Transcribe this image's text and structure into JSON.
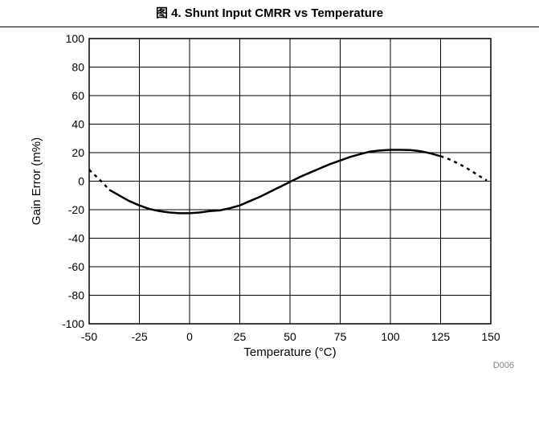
{
  "figure": {
    "title": "图 4. Shunt Input CMRR vs Temperature",
    "id_label": "D006"
  },
  "chart_data": {
    "type": "line",
    "title": "图 4. Shunt Input CMRR vs Temperature",
    "xlabel": "Temperature (°C)",
    "ylabel": "Gain Error (m%)",
    "xlim": [
      -50,
      150
    ],
    "ylim": [
      -100,
      100
    ],
    "x_ticks": [
      "-50",
      "-25",
      "0",
      "25",
      "50",
      "75",
      "100",
      "125",
      "150"
    ],
    "y_ticks": [
      "100",
      "80",
      "60",
      "40",
      "20",
      "0",
      "-20",
      "-40",
      "-60",
      "-80",
      "-100"
    ],
    "grid": true,
    "series": [
      {
        "style": "solid",
        "color": "#000000",
        "x": [
          -40,
          -35,
          -30,
          -25,
          -20,
          -15,
          -10,
          -5,
          0,
          5,
          10,
          15,
          20,
          25,
          30,
          35,
          40,
          45,
          50,
          55,
          60,
          65,
          70,
          75,
          80,
          85,
          90,
          95,
          100,
          105,
          110,
          115,
          120,
          125
        ],
        "y": [
          -6,
          -10,
          -14,
          -17,
          -19.5,
          -21,
          -22,
          -22.5,
          -22.5,
          -22,
          -21,
          -20.5,
          -19,
          -17,
          -14,
          -11,
          -7.5,
          -4,
          -0.5,
          3,
          6,
          9,
          12,
          14.5,
          17,
          19,
          20.8,
          21.6,
          22,
          22,
          21.8,
          21,
          19.5,
          17.5
        ]
      },
      {
        "style": "dashed",
        "color": "#000000",
        "x": [
          -50,
          -47,
          -44,
          -40
        ],
        "y": [
          8,
          4,
          0,
          -6
        ]
      },
      {
        "style": "dashed",
        "color": "#000000",
        "x": [
          125,
          130,
          135,
          140,
          145,
          148
        ],
        "y": [
          17.5,
          15,
          11.5,
          7.5,
          3,
          0.5
        ]
      }
    ]
  }
}
